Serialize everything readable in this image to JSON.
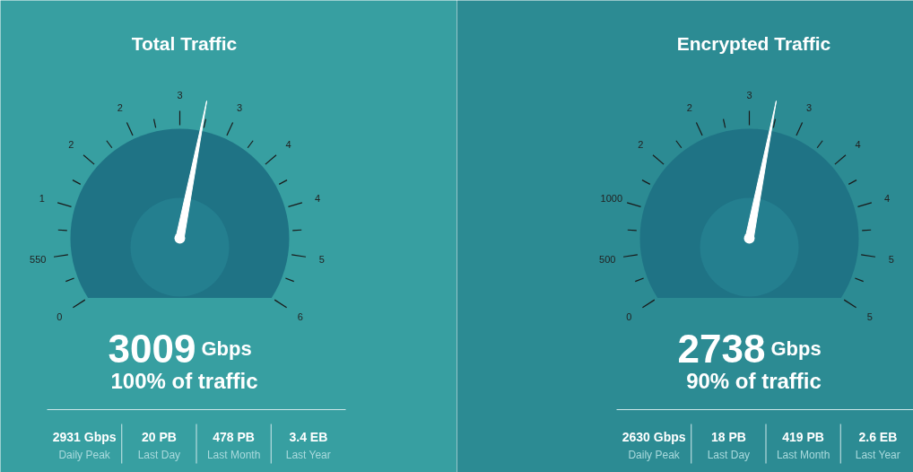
{
  "chart_data": [
    {
      "type": "other",
      "title": "Total Traffic",
      "values": [
        3009
      ],
      "data_labels": true,
      "annotations": [
        "Gbps",
        "100% of traffic",
        "2931 Gbps",
        "Daily Peak",
        "20 PB",
        "Last Day",
        "478 PB",
        "Last Month",
        "3.4 EB",
        "Last Year",
        "0",
        "550",
        "1",
        "2",
        "2",
        "3",
        "3",
        "4",
        "4",
        "5",
        "6"
      ]
    },
    {
      "type": "other",
      "title": "Encrypted Traffic",
      "values": [
        2738
      ],
      "data_labels": true,
      "annotations": [
        "Gbps",
        "90% of traffic",
        "2630 Gbps",
        "Daily Peak",
        "18 PB",
        "Last Day",
        "419 PB",
        "Last Month",
        "2.6 EB",
        "Last Year",
        "0",
        "500",
        "1000",
        "2",
        "2",
        "3",
        "3",
        "4",
        "4",
        "5",
        "5"
      ]
    }
  ]
}
